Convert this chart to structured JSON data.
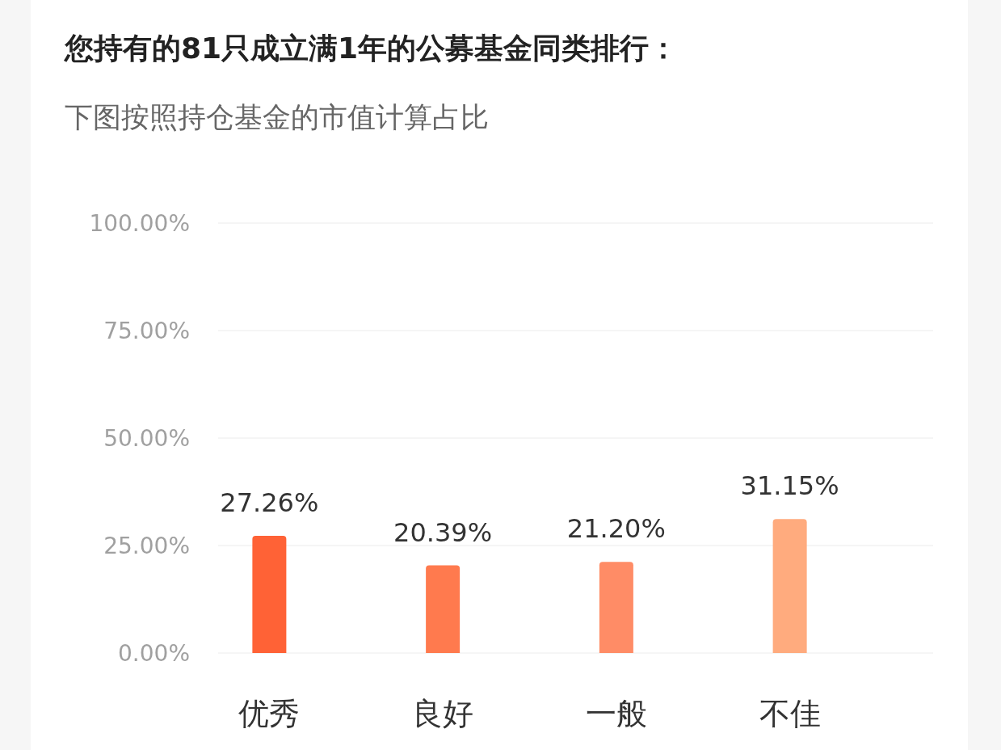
{
  "chart_data": {
    "type": "bar",
    "title": "您持有的81只成立满1年的公募基金同类排行：",
    "subtitle": "下图按照持仓基金的市值计算占比",
    "categories": [
      "优秀",
      "良好",
      "一般",
      "不佳"
    ],
    "values": [
      27.26,
      20.39,
      21.2,
      31.15
    ],
    "colors": [
      "#ff6236",
      "#ff7a4e",
      "#ff8c66",
      "#ffab7e"
    ],
    "value_labels": [
      "27.26%",
      "20.39%",
      "21.20%",
      "31.15%"
    ],
    "ylim": [
      0,
      100
    ],
    "yticks": [
      {
        "value": 0,
        "label": "0.00%"
      },
      {
        "value": 25,
        "label": "25.00%"
      },
      {
        "value": 50,
        "label": "50.00%"
      },
      {
        "value": 75,
        "label": "75.00%"
      },
      {
        "value": 100,
        "label": "100.00%"
      }
    ],
    "grid": "y"
  }
}
